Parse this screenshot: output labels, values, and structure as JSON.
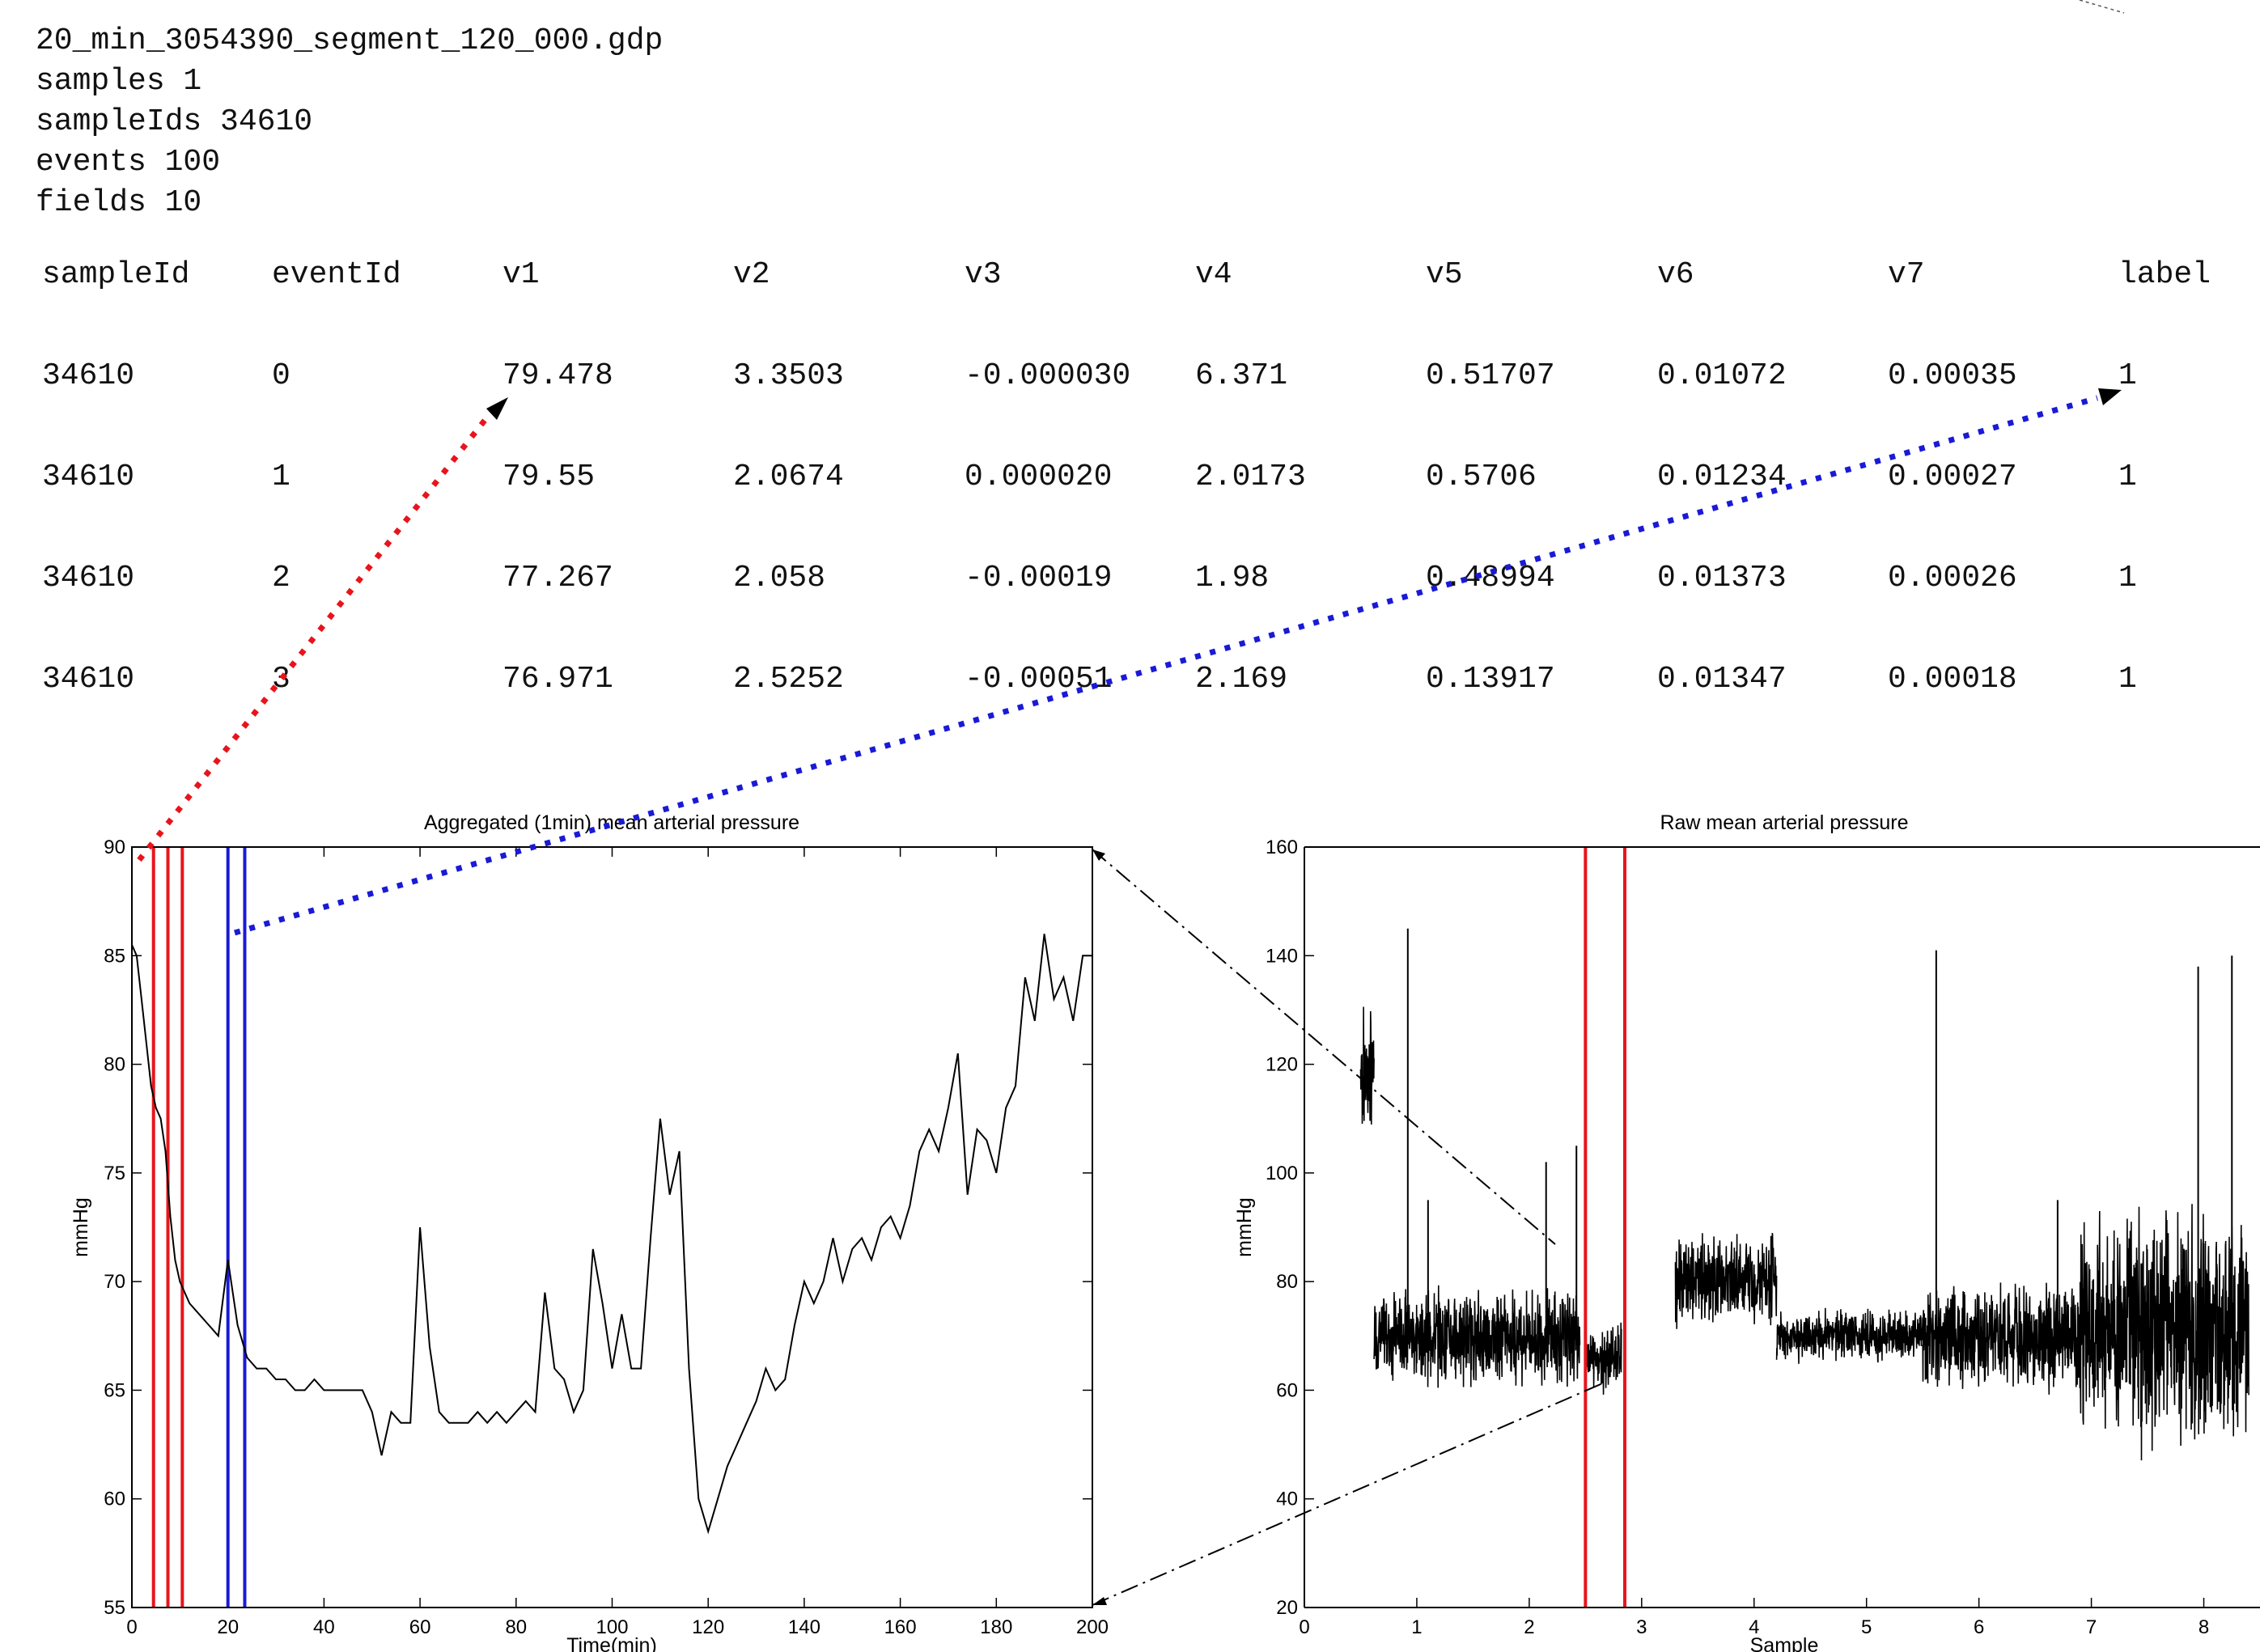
{
  "file_info": {
    "filename": "20_min_3054390_segment_120_000.gdp",
    "samples": "samples 1",
    "sample_ids": "sampleIds 34610",
    "events": "events 100",
    "fields": "fields 10"
  },
  "table": {
    "columns": [
      "sampleId",
      "eventId",
      "v1",
      "v2",
      "v3",
      "v4",
      "v5",
      "v6",
      "v7",
      "label"
    ],
    "rows": [
      [
        "34610",
        "0",
        "79.478",
        "3.3503",
        "-0.000030",
        "6.371",
        "0.51707",
        "0.01072",
        "0.00035",
        "1"
      ],
      [
        "34610",
        "1",
        "79.55",
        "2.0674",
        "0.000020",
        "2.0173",
        "0.5706",
        "0.01234",
        "0.00027",
        "1"
      ],
      [
        "34610",
        "2",
        "77.267",
        "2.058",
        "-0.00019",
        "1.98",
        "0.48994",
        "0.01373",
        "0.00026",
        "1"
      ],
      [
        "34610",
        "3",
        "76.971",
        "2.5252",
        "-0.00051",
        "2.169",
        "0.13917",
        "0.01347",
        "0.00018",
        "1"
      ]
    ]
  },
  "colors": {
    "event_red": "#e8141c",
    "event_blue": "#1a1ad6",
    "arrow_red": "#e8141c",
    "arrow_blue": "#1a1ad6",
    "trace": "#000000"
  },
  "chart_data": [
    {
      "type": "line",
      "title": "Aggregated (1min) mean arterial pressure",
      "xlabel": "Time(min)",
      "ylabel": "mmHg",
      "xlim": [
        0,
        200
      ],
      "ylim": [
        55,
        90
      ],
      "xticks": [
        0,
        20,
        40,
        60,
        80,
        100,
        120,
        140,
        160,
        180,
        200
      ],
      "yticks": [
        55,
        60,
        65,
        70,
        75,
        80,
        85,
        90
      ],
      "grid": false,
      "x": [
        0,
        1,
        2,
        3,
        4,
        5,
        6,
        7,
        8,
        9,
        10,
        12,
        14,
        16,
        18,
        20,
        22,
        24,
        26,
        28,
        30,
        32,
        34,
        36,
        38,
        40,
        42,
        44,
        46,
        48,
        50,
        52,
        54,
        56,
        58,
        60,
        62,
        64,
        66,
        68,
        70,
        72,
        74,
        76,
        78,
        80,
        82,
        84,
        86,
        88,
        90,
        92,
        94,
        96,
        98,
        100,
        102,
        104,
        106,
        108,
        110,
        112,
        114,
        116,
        118,
        120,
        122,
        124,
        126,
        128,
        130,
        132,
        134,
        136,
        138,
        140,
        142,
        144,
        146,
        148,
        150,
        152,
        154,
        156,
        158,
        160,
        162,
        164,
        166,
        168,
        170,
        172,
        174,
        176,
        178,
        180,
        182,
        184,
        186,
        188,
        190,
        192,
        194,
        196,
        198,
        200
      ],
      "y": [
        85.5,
        85,
        83,
        81,
        79,
        78,
        77.5,
        76,
        73,
        71,
        70,
        69,
        68.5,
        68,
        67.5,
        71,
        68,
        66.5,
        66,
        66,
        65.5,
        65.5,
        65,
        65,
        65.5,
        65,
        65,
        65,
        65,
        65,
        64,
        62,
        64,
        63.5,
        63.5,
        72.5,
        67,
        64,
        63.5,
        63.5,
        63.5,
        64,
        63.5,
        64,
        63.5,
        64,
        64.5,
        64,
        69.5,
        66,
        65.5,
        64,
        65,
        71.5,
        69,
        66,
        68.5,
        66,
        66,
        72,
        77.5,
        74,
        76,
        66,
        60,
        58.5,
        60,
        61.5,
        62.5,
        63.5,
        64.5,
        66,
        65,
        65.5,
        68,
        70,
        69,
        70,
        72,
        70,
        71.5,
        72,
        71,
        72.5,
        73,
        72,
        73.5,
        76,
        77,
        76,
        78,
        80.5,
        74,
        77,
        76.5,
        75,
        78,
        79,
        84,
        82,
        86,
        83,
        84,
        82,
        85,
        85
      ],
      "event_lines": {
        "red": [
          4.5,
          7.5,
          10.5
        ],
        "blue": [
          20,
          23.5
        ]
      }
    },
    {
      "type": "line",
      "title": "Raw mean arterial pressure",
      "xlabel": "Sample",
      "ylabel": "mmHg",
      "xlim": [
        0,
        8.5
      ],
      "ylim": [
        20,
        160
      ],
      "xticks": [
        0,
        1,
        2,
        3,
        4,
        5,
        6,
        7,
        8
      ],
      "yticks": [
        20,
        40,
        60,
        80,
        100,
        120,
        140,
        160
      ],
      "grid": false,
      "segments": [
        {
          "x_start": 0.5,
          "x_end": 0.62,
          "level": 118,
          "spread": 10
        },
        {
          "x_start": 0.62,
          "x_end": 2.45,
          "level": 70,
          "spread": 7
        },
        {
          "x_start": 2.5,
          "x_end": 2.82,
          "level": 66,
          "spread": 5
        },
        {
          "x_start": 3.3,
          "x_end": 4.2,
          "level": 80,
          "spread": 7
        },
        {
          "x_start": 4.2,
          "x_end": 5.5,
          "level": 70,
          "spread": 4
        },
        {
          "x_start": 5.5,
          "x_end": 6.9,
          "level": 70,
          "spread": 8
        },
        {
          "x_start": 6.9,
          "x_end": 8.4,
          "level": 72,
          "spread": 18
        }
      ],
      "spikes": [
        [
          0.92,
          145
        ],
        [
          1.1,
          95
        ],
        [
          2.15,
          102
        ],
        [
          2.42,
          105
        ],
        [
          5.62,
          141
        ],
        [
          6.7,
          95
        ],
        [
          7.95,
          138
        ],
        [
          8.25,
          140
        ]
      ],
      "event_lines": {
        "red": [
          2.5,
          2.85
        ]
      }
    }
  ]
}
